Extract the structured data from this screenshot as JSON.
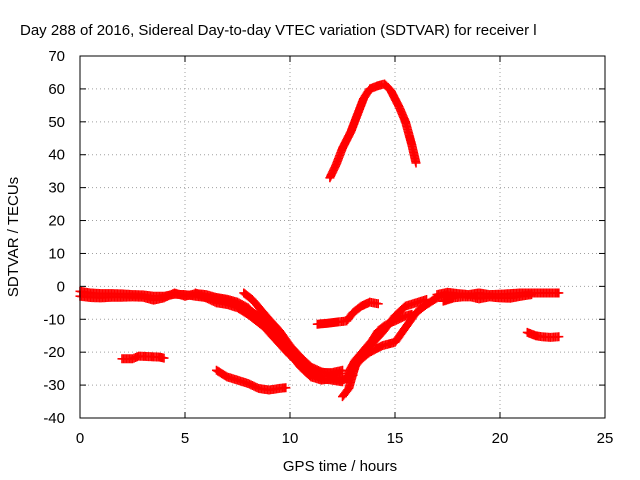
{
  "chart_data": {
    "type": "scatter",
    "title": "Day 288 of 2016, Sidereal Day-to-day VTEC variation (SDTVAR) for receiver l",
    "xlabel": "GPS time / hours",
    "ylabel": "SDTVAR / TECUs",
    "xlim": [
      0,
      25
    ],
    "ylim": [
      -40,
      70
    ],
    "xticks": [
      0,
      5,
      10,
      15,
      20,
      25
    ],
    "yticks": [
      -40,
      -30,
      -20,
      -10,
      0,
      10,
      20,
      30,
      40,
      50,
      60,
      70
    ],
    "grid": true,
    "marker": "plus",
    "color": "#ff0000",
    "series": [
      {
        "values": [
          [
            0.0,
            -1.5
          ],
          [
            0.5,
            -2.0
          ],
          [
            1.0,
            -2.2
          ],
          [
            1.5,
            -2.2
          ],
          [
            2.0,
            -2.3
          ],
          [
            2.5,
            -2.5
          ],
          [
            3.0,
            -2.6
          ],
          [
            3.5,
            -3.0
          ],
          [
            4.0,
            -3.0
          ],
          [
            4.5,
            -2.4
          ],
          [
            5.0,
            -2.5
          ],
          [
            5.5,
            -3.0
          ],
          [
            6.0,
            -3.4
          ],
          [
            6.5,
            -3.6
          ],
          [
            7.0,
            -4.3
          ],
          [
            7.5,
            -5.5
          ],
          [
            8.0,
            -7.0
          ],
          [
            8.5,
            -9.0
          ],
          [
            9.0,
            -11.8
          ],
          [
            9.5,
            -15.0
          ],
          [
            10.0,
            -18.0
          ],
          [
            10.5,
            -21.5
          ],
          [
            11.0,
            -24.5
          ],
          [
            11.5,
            -26.0
          ],
          [
            12.0,
            -26.6
          ],
          [
            12.5,
            -26.5
          ]
        ]
      },
      {
        "values": [
          [
            0.0,
            -3.0
          ],
          [
            0.5,
            -3.4
          ],
          [
            1.0,
            -3.5
          ],
          [
            1.5,
            -3.3
          ],
          [
            2.0,
            -3.3
          ],
          [
            2.5,
            -3.2
          ],
          [
            3.0,
            -3.3
          ],
          [
            3.5,
            -4.2
          ],
          [
            4.0,
            -3.5
          ],
          [
            4.5,
            -2.0
          ],
          [
            5.0,
            -3.0
          ],
          [
            5.5,
            -2.2
          ],
          [
            6.0,
            -2.5
          ],
          [
            6.5,
            -3.4
          ],
          [
            7.0,
            -3.9
          ],
          [
            7.5,
            -4.8
          ],
          [
            8.0,
            -6.5
          ],
          [
            8.5,
            -10.0
          ],
          [
            9.0,
            -14.0
          ],
          [
            9.5,
            -17.5
          ],
          [
            10.0,
            -21.0
          ],
          [
            10.5,
            -23.5
          ],
          [
            11.0,
            -25.5
          ],
          [
            11.5,
            -26.2
          ],
          [
            12.0,
            -26.2
          ],
          [
            12.5,
            -25.5
          ]
        ]
      },
      {
        "values": [
          [
            5.5,
            -2.0
          ],
          [
            6.0,
            -3.5
          ],
          [
            6.5,
            -5.0
          ],
          [
            7.0,
            -5.5
          ],
          [
            7.5,
            -6.5
          ],
          [
            8.0,
            -8.5
          ],
          [
            8.5,
            -11.0
          ],
          [
            9.0,
            -13.5
          ],
          [
            9.5,
            -17.0
          ],
          [
            10.0,
            -20.5
          ],
          [
            10.5,
            -24.5
          ],
          [
            11.0,
            -27.5
          ],
          [
            11.5,
            -28.5
          ],
          [
            12.0,
            -28.0
          ],
          [
            12.5,
            -28.5
          ],
          [
            13.0,
            -27.0
          ]
        ]
      },
      {
        "values": [
          [
            7.8,
            -2.0
          ],
          [
            8.2,
            -4.0
          ],
          [
            8.6,
            -7.0
          ],
          [
            9.0,
            -10.0
          ],
          [
            9.5,
            -13.5
          ],
          [
            10.0,
            -18.0
          ],
          [
            10.5,
            -22.0
          ],
          [
            11.0,
            -26.0
          ],
          [
            11.5,
            -28.0
          ],
          [
            12.0,
            -28.5
          ],
          [
            12.5,
            -29.0
          ]
        ]
      },
      {
        "values": [
          [
            6.5,
            -25.5
          ],
          [
            7.0,
            -27.5
          ],
          [
            7.5,
            -28.5
          ],
          [
            8.0,
            -29.5
          ],
          [
            8.5,
            -31.0
          ],
          [
            9.0,
            -31.5
          ],
          [
            9.5,
            -31.0
          ],
          [
            9.8,
            -30.8
          ]
        ]
      },
      {
        "values": [
          [
            2.0,
            -22.0
          ],
          [
            2.5,
            -22.0
          ],
          [
            2.8,
            -21.2
          ],
          [
            3.8,
            -21.5
          ],
          [
            4.0,
            -21.8
          ]
        ]
      },
      {
        "values": [
          [
            11.3,
            -11.5
          ],
          [
            11.8,
            -11.2
          ],
          [
            12.3,
            -10.8
          ],
          [
            12.7,
            -10.5
          ],
          [
            13.0,
            -8.0
          ],
          [
            13.4,
            -6.0
          ],
          [
            13.8,
            -4.8
          ],
          [
            14.2,
            -5.3
          ]
        ]
      },
      {
        "values": [
          [
            11.9,
            33.0
          ],
          [
            12.2,
            37.0
          ],
          [
            12.5,
            42.0
          ],
          [
            12.9,
            47.0
          ],
          [
            13.2,
            52.0
          ],
          [
            13.5,
            57.0
          ],
          [
            13.8,
            60.0
          ],
          [
            14.2,
            61.0
          ],
          [
            14.5,
            61.5
          ],
          [
            14.8,
            59.5
          ],
          [
            15.2,
            54.5
          ],
          [
            15.5,
            50.0
          ],
          [
            15.8,
            43.0
          ],
          [
            16.0,
            37.5
          ]
        ]
      },
      {
        "values": [
          [
            12.5,
            -33.5
          ],
          [
            12.8,
            -31.0
          ],
          [
            13.0,
            -26.5
          ],
          [
            13.2,
            -22.5
          ],
          [
            13.5,
            -20.0
          ],
          [
            13.9,
            -17.5
          ],
          [
            14.4,
            -14.0
          ],
          [
            15.0,
            -9.0
          ],
          [
            15.5,
            -6.0
          ],
          [
            16.0,
            -5.0
          ],
          [
            16.5,
            -4.0
          ]
        ]
      },
      {
        "values": [
          [
            12.8,
            -26.0
          ],
          [
            13.1,
            -22.5
          ],
          [
            13.5,
            -19.5
          ],
          [
            13.9,
            -16.5
          ],
          [
            14.2,
            -13.5
          ],
          [
            14.5,
            -12.0
          ],
          [
            14.8,
            -11.0
          ],
          [
            15.0,
            -10.5
          ],
          [
            15.5,
            -9.0
          ],
          [
            15.8,
            -8.5
          ]
        ]
      },
      {
        "values": [
          [
            12.7,
            -28.0
          ],
          [
            13.0,
            -25.0
          ],
          [
            13.4,
            -22.0
          ],
          [
            13.8,
            -20.0
          ],
          [
            14.4,
            -18.0
          ],
          [
            15.0,
            -17.0
          ],
          [
            15.5,
            -12.5
          ],
          [
            16.0,
            -8.0
          ],
          [
            16.5,
            -5.5
          ],
          [
            17.0,
            -3.5
          ],
          [
            17.5,
            -2.5
          ]
        ]
      },
      {
        "values": [
          [
            17.0,
            -2.5
          ],
          [
            17.5,
            -1.8
          ],
          [
            18.0,
            -2.2
          ],
          [
            18.5,
            -2.5
          ],
          [
            19.0,
            -2.0
          ],
          [
            19.5,
            -2.5
          ],
          [
            20.0,
            -2.4
          ],
          [
            20.5,
            -2.2
          ],
          [
            21.0,
            -2.0
          ],
          [
            21.5,
            -2.0
          ],
          [
            22.0,
            -2.0
          ],
          [
            22.5,
            -2.0
          ],
          [
            22.8,
            -2.0
          ]
        ]
      },
      {
        "values": [
          [
            17.3,
            -4.5
          ],
          [
            17.8,
            -3.5
          ],
          [
            18.2,
            -3.2
          ],
          [
            18.6,
            -3.2
          ],
          [
            19.0,
            -3.8
          ],
          [
            19.5,
            -3.2
          ],
          [
            20.0,
            -3.5
          ],
          [
            20.5,
            -3.6
          ],
          [
            21.0,
            -3.0
          ],
          [
            21.5,
            -2.5
          ]
        ]
      },
      {
        "values": [
          [
            21.3,
            -14.0
          ],
          [
            21.7,
            -15.0
          ],
          [
            22.0,
            -15.3
          ],
          [
            22.4,
            -15.5
          ],
          [
            22.8,
            -15.3
          ]
        ]
      }
    ]
  }
}
